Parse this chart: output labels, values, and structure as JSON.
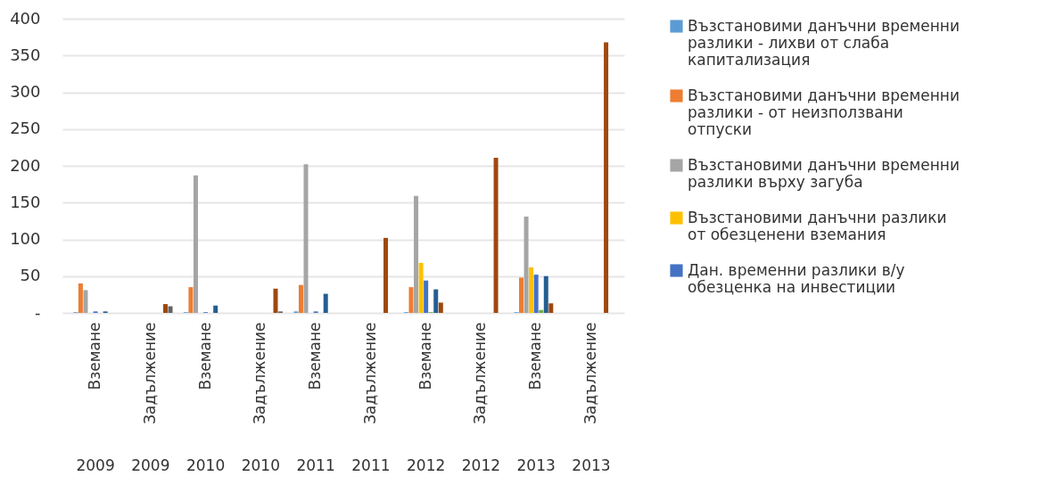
{
  "chart_data": {
    "type": "bar",
    "categories": [
      "Вземане 2009",
      "Задължение 2009",
      "Вземане 2010",
      "Задължение 2010",
      "Вземане 2011",
      "Задължение 2011",
      "Вземане 2012",
      "Задължение 2012",
      "Вземане 2013",
      "Задължение 2013"
    ],
    "series": [
      {
        "name": "Възстановими данъчни временни разлики - лихви от слаба капитализация",
        "color": "#5b9bd5",
        "values": [
          1,
          0,
          1,
          0,
          2,
          0,
          1,
          0,
          1,
          0
        ]
      },
      {
        "name": "Възстановими данъчни временни разлики - от неизползвани отпуски",
        "color": "#ed7d31",
        "values": [
          40,
          0,
          35,
          0,
          38,
          0,
          35,
          0,
          48,
          0
        ]
      },
      {
        "name": "Възстановими данъчни временни разлики върху загуба",
        "color": "#a5a5a5",
        "values": [
          31,
          0,
          187,
          0,
          202,
          0,
          159,
          0,
          131,
          0
        ]
      },
      {
        "name": "Възстановими данъчни разлики от обезценени вземания",
        "color": "#ffc000",
        "values": [
          0,
          0,
          0,
          0,
          0,
          0,
          68,
          0,
          62,
          0
        ]
      },
      {
        "name": "Дан. временни разлики в/у обезценка на инвестиции",
        "color": "#4472c4",
        "values": [
          2,
          0,
          1,
          0,
          2,
          0,
          44,
          0,
          52,
          0
        ]
      },
      {
        "color": "#70ad47",
        "values": [
          0,
          0,
          0,
          0,
          0,
          0,
          1,
          0,
          4,
          0
        ]
      },
      {
        "color": "#255e91",
        "values": [
          2,
          0,
          10,
          0,
          26,
          0,
          32,
          0,
          50,
          0
        ]
      },
      {
        "color": "#9e480e",
        "values": [
          0,
          12,
          0,
          33,
          0,
          102,
          14,
          211,
          13,
          368
        ]
      },
      {
        "color": "#636363",
        "values": [
          0,
          9,
          0,
          2,
          0,
          0,
          0,
          0,
          0,
          0
        ]
      }
    ],
    "ylim": [
      0,
      400
    ],
    "yticks": [
      {
        "value": 0,
        "label": "-"
      },
      50,
      100,
      150,
      200,
      250,
      300,
      350,
      400
    ],
    "grid": "y",
    "legend": "right"
  }
}
